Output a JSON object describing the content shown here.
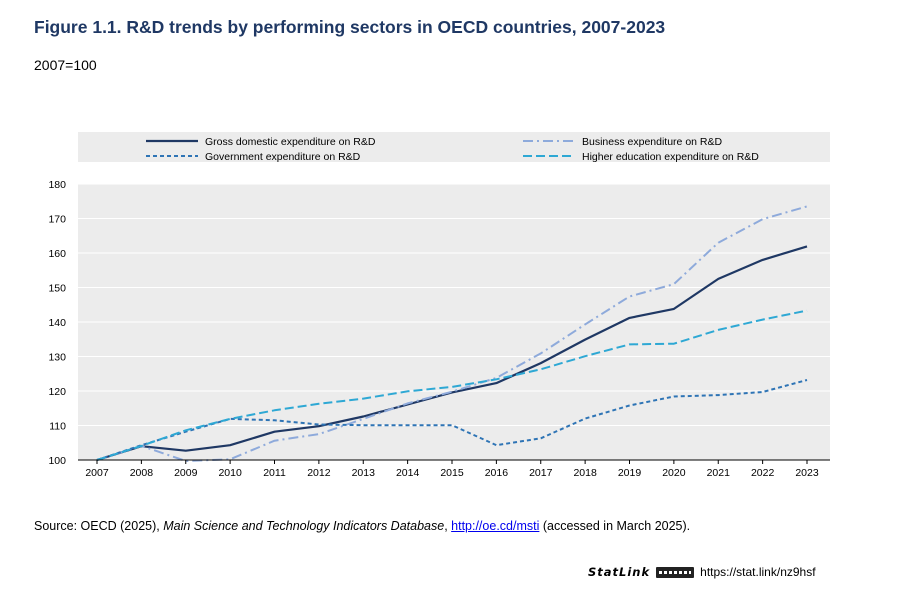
{
  "header": {
    "title": "Figure 1.1. R&D trends by performing sectors in OECD countries, 2007-2023",
    "subtitle": "2007=100"
  },
  "footer": {
    "source_prefix": "Source: OECD (2025), ",
    "source_italic": "Main Science and Technology Indicators Database",
    "source_sep": ", ",
    "source_link": "http://oe.cd/msti",
    "source_suffix": " (accessed in March 2025).",
    "statlink_label": "StatLink",
    "statlink_icon": "statlink-logo-icon",
    "statlink_url": "https://stat.link/nz9hsf"
  },
  "chart_data": {
    "type": "line",
    "title": "Figure 1.1. R&D trends by performing sectors in OECD countries, 2007-2023",
    "subtitle": "2007=100",
    "xlabel": "",
    "ylabel": "",
    "categories": [
      "2007",
      "2008",
      "2009",
      "2010",
      "2011",
      "2012",
      "2013",
      "2014",
      "2015",
      "2016",
      "2017",
      "2018",
      "2019",
      "2020",
      "2021",
      "2022",
      "2023"
    ],
    "ylim": [
      100,
      180
    ],
    "yticks": [
      100,
      110,
      120,
      130,
      140,
      150,
      160,
      170,
      180
    ],
    "grid": true,
    "legend_position": "top",
    "series": [
      {
        "name": "Gross domestic expenditure on R&D",
        "color": "#1f3864",
        "style": "solid",
        "values": [
          100,
          104,
          102.7,
          104.3,
          108.2,
          109.8,
          112.6,
          116.1,
          119.6,
          122.3,
          128.1,
          134.9,
          141.2,
          143.8,
          152.5,
          158,
          161.9
        ]
      },
      {
        "name": "Business expenditure on R&D",
        "color": "#8eaadb",
        "style": "dashdot",
        "values": [
          100,
          104.1,
          99.7,
          100.2,
          105.6,
          107.5,
          111.9,
          116.4,
          119.8,
          123.8,
          130.9,
          139.3,
          147.4,
          151,
          163,
          169.8,
          173.5
        ]
      },
      {
        "name": "Government expenditure on R&D",
        "color": "#2e74b5",
        "style": "dotted",
        "values": [
          100,
          104.3,
          108.2,
          111.9,
          111.5,
          110.3,
          110.1,
          110.1,
          110.1,
          104.3,
          106.3,
          112,
          115.8,
          118.4,
          118.8,
          119.7,
          123.2
        ]
      },
      {
        "name": "Higher education expenditure on R&D",
        "color": "#2ea8d4",
        "style": "dashed",
        "values": [
          100,
          104.1,
          108.6,
          111.9,
          114.4,
          116.3,
          117.8,
          119.9,
          121.2,
          123.4,
          126.3,
          130.1,
          133.5,
          133.7,
          137.7,
          140.7,
          143.3
        ]
      }
    ]
  }
}
